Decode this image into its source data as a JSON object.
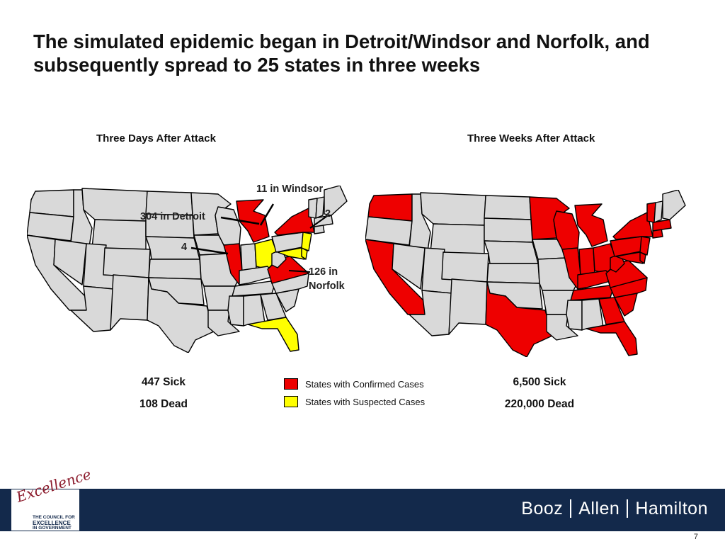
{
  "title": "The simulated epidemic began in Detroit/Windsor and Norfolk, and subsequently spread to 25 states in three weeks",
  "left_map": {
    "heading": "Three Days After Attack",
    "annotations": {
      "windsor": "11 in Windsor",
      "detroit": "304 in Detroit",
      "illinois": "4",
      "northeast": "2",
      "norfolk_line1": "126 in",
      "norfolk_line2": "Norfolk"
    },
    "sick": "447 Sick",
    "dead": "108 Dead",
    "confirmed_states": [
      "IL",
      "MI",
      "NY",
      "VA"
    ],
    "suspected_states": [
      "OH",
      "FL",
      "NJ",
      "DE",
      "MD"
    ]
  },
  "right_map": {
    "heading": "Three Weeks After Attack",
    "sick": "6,500 Sick",
    "dead": "220,000 Dead",
    "confirmed_states": [
      "WA",
      "CA",
      "TX",
      "MN",
      "WI",
      "IL",
      "MI",
      "IN",
      "OH",
      "KY",
      "TN",
      "GA",
      "FL",
      "NC",
      "VA",
      "WV",
      "PA",
      "NY",
      "NJ",
      "MD",
      "DE",
      "CT",
      "MA",
      "SC",
      "VT"
    ]
  },
  "legend": {
    "confirmed_label": "States with Confirmed Cases",
    "suspected_label": "States with Suspected Cases",
    "confirmed_color": "#ee0000",
    "suspected_color": "#ffff00"
  },
  "colors": {
    "state_fill": "#d9d9d9",
    "confirmed": "#ee0000",
    "suspected": "#ffff00",
    "footer_bg": "#13294b"
  },
  "footer": {
    "logo_script": "Excellence",
    "logo_line1": "THE COUNCIL FOR",
    "logo_line2": "EXCELLENCE",
    "logo_line3": "IN GOVERNMENT",
    "brand_word1": "Booz",
    "brand_word2": "Allen",
    "brand_word3": "Hamilton"
  },
  "page_number": "7"
}
